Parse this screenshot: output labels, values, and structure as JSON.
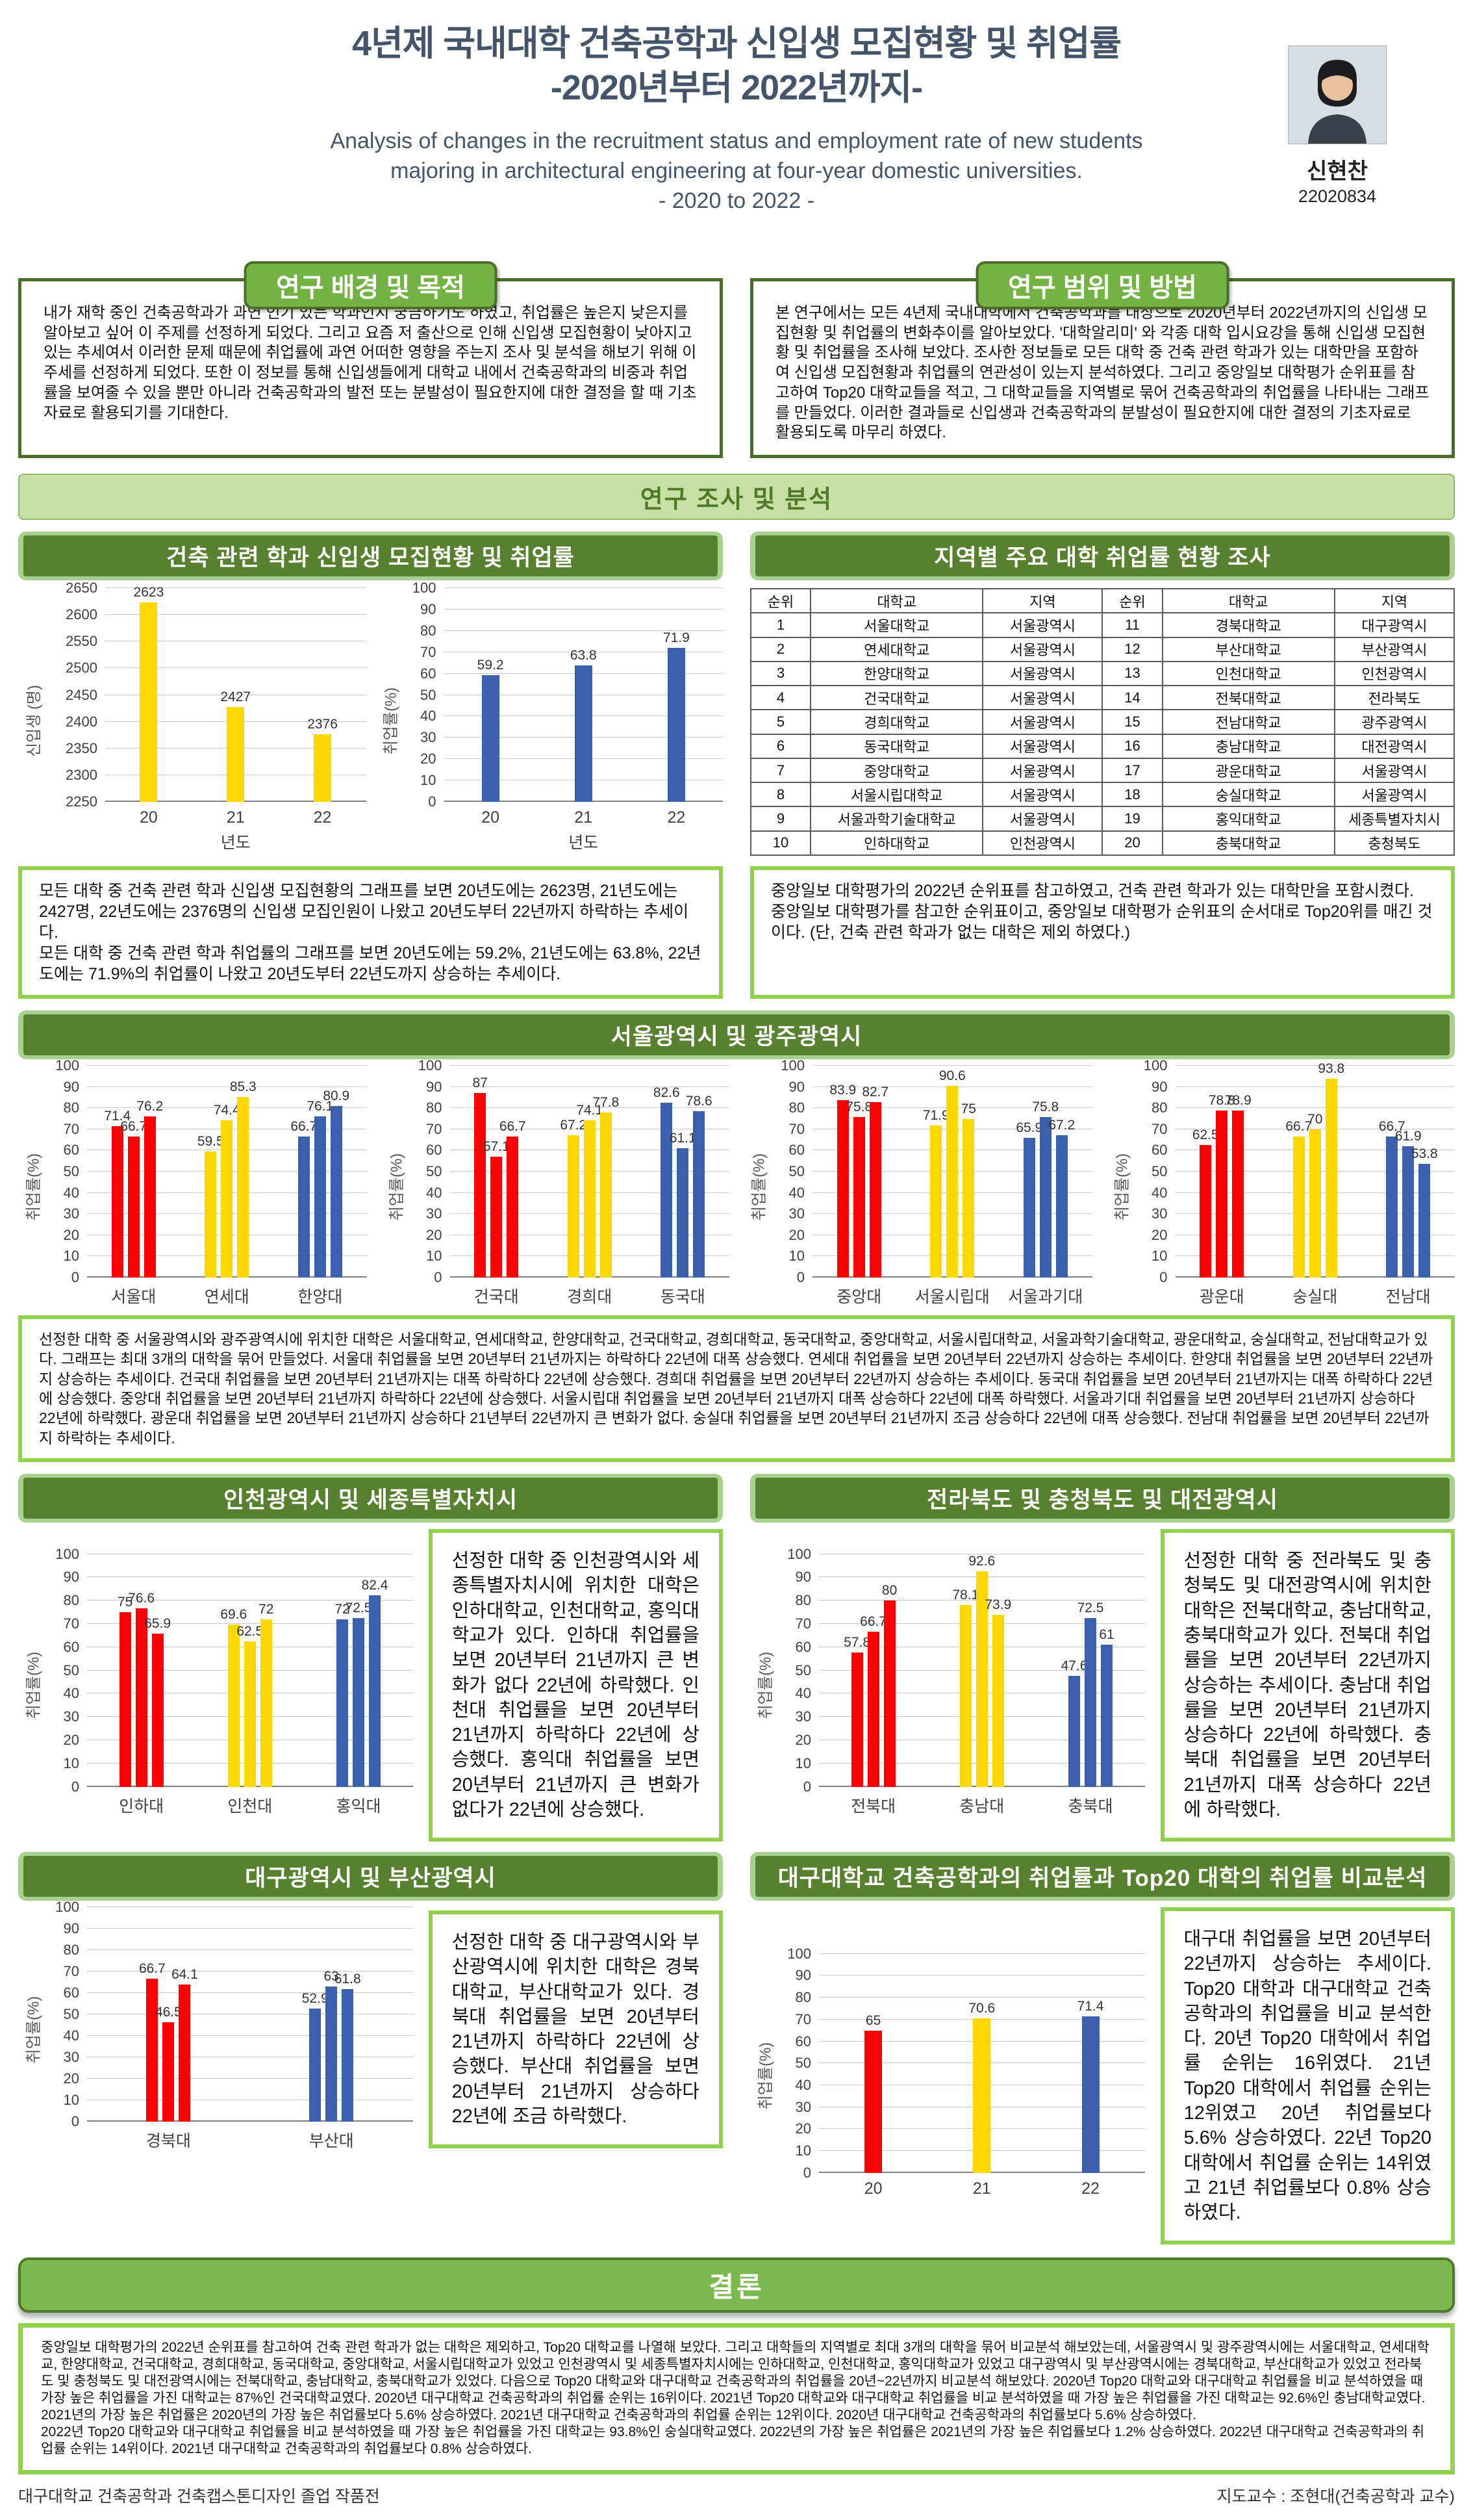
{
  "palette": {
    "red": "#ff0000",
    "yellow": "#ffd800",
    "blue": "#3a5fac",
    "section_green": "#57802f",
    "accent_light_green": "#a9d18e",
    "note_border_green": "#92d050",
    "pill_green": "#73b343",
    "title_color": "#44546a"
  },
  "header": {
    "title_line1": "4년제 국내대학 건축공학과 신입생 모집현황 및 취업률",
    "title_line2": "-2020년부터 2022년까지-",
    "subtitle_line1": "Analysis of changes in the recruitment status and employment rate of new students",
    "subtitle_line2": "majoring in architectural engineering at four-year domestic universities.",
    "subtitle_line3": "- 2020 to 2022 -",
    "author_name": "신현찬",
    "author_id": "22020834"
  },
  "background_section": {
    "title": "연구 배경 및 목적",
    "body": "내가 재학 중인 건축공학과가 과연 인기 있는 학과인지 궁금하기도 하였고, 취업률은 높은지 낮은지를 알아보고 싶어 이 주제를 선정하게 되었다. 그리고 요즘 저 출산으로 인해 신입생 모집현황이 낮아지고 있는 추세여서 이러한 문제 때문에 취업률에 과연 어떠한 영향을 주는지 조사 및 분석을 해보기 위해 이 주세를 선정하게 되었다. 또한 이 정보를 통해 신입생들에게 대학교 내에서 건축공학과의 비중과 취업률을 보여줄 수 있을 뿐만 아니라 건축공학과의 발전 또는 분발성이 필요한지에 대한 결정을 할 때 기초자료로 활용되기를 기대한다."
  },
  "method_section": {
    "title": "연구 범위 및 방법",
    "body": "본 연구에서는 모든 4년제 국내대학에서 건축공학과를 대상으로 2020년부터 2022년까지의 신입생 모집현황 및 취업률의 변화추이를 알아보았다. '대학알리미' 와 각종 대학 입시요강을 통해 신입생 모집현황 및 취업률을 조사해 보았다. 조사한 정보들로 모든 대학 중 건축 관련 학과가 있는 대학만을 포함하여 신입생 모집현황과 취업률의 연관성이 있는지 분석하였다. 그리고 중앙일보 대학평가 순위표를 참고하여 Top20 대학교들을 적고, 그 대학교들을 지역별로 묶어 건축공학과의 취업률을 나타내는 그래프를 만들었다. 이러한 결과들로 신입생과 건축공학과의 분발성이 필요한지에 대한 결정의 기초자료로 활용되도록 마무리 하였다."
  },
  "analysis_banner": "연구 조사 및 분석",
  "sections": {
    "intake": {
      "title": "건축 관련 학과 신입생 모집현황 및 취업률",
      "note": "모든 대학 중 건축 관련 학과 신입생 모집현황의 그래프를 보면 20년도에는 2623명, 21년도에는 2427명, 22년도에는 2376명의 신입생 모집인원이 나왔고 20년도부터 22년까지 하락하는 추세이다.\n모든 대학 중 건축 관련 학과 취업률의 그래프를 보면 20년도에는 59.2%, 21년도에는 63.8%, 22년도에는 71.9%의 취업률이 나왔고 20년도부터 22년도까지 상승하는 추세이다."
    },
    "regional_table": {
      "title": "지역별 주요 대학 취업률 현황 조사",
      "note": "중앙일보 대학평가의 2022년 순위표를 참고하였고, 건축 관련 학과가 있는 대학만을 포함시켰다.\n중앙일보 대학평가를 참고한 순위표이고, 중앙일보 대학평가 순위표의 순서대로 Top20위를 매긴 것이다. (단, 건축 관련 학과가 없는 대학은 제외 하였다.)"
    },
    "seoul": {
      "title": "서울광역시 및 광주광역시",
      "note": "선정한 대학 중 서울광역시와 광주광역시에 위치한 대학은 서울대학교, 연세대학교, 한양대학교, 건국대학교, 경희대학교, 동국대학교, 중앙대학교, 서울시립대학교, 서울과학기술대학교, 광운대학교, 숭실대학교, 전남대학교가 있다. 그래프는 최대 3개의 대학을 묶어 만들었다. 서울대 취업률을 보면 20년부터 21년까지는 하락하다 22년에 대폭 상승했다. 연세대 취업률을 보면 20년부터 22년까지 상승하는 추세이다. 한양대 취업률을 보면 20년부터 22년까지 상승하는 추세이다. 건국대 취업률을 보면 20년부터 21년까지는 대폭 하락하다 22년에 상승했다. 경희대 취업률을 보면 20년부터 22년까지 상승하는 추세이다. 동국대 취업률을 보면 20년부터 21년까지는 대폭 하락하다 22년에 상승했다. 중앙대 취업률을 보면 20년부터 21년까지 하락하다 22년에 상승했다. 서울시립대 취업률을 보면 20년부터 21년까지 대폭 상승하다 22년에 대폭 하락했다. 서울과기대 취업률을 보면 20년부터 21년까지 상승하다 22년에 하락했다. 광운대 취업률을 보면 20년부터 21년까지 상승하다 21년부터 22년까지 큰 변화가 없다. 숭실대 취업률을 보면 20년부터 21년까지 조금 상승하다 22년에 대폭 상승했다. 전남대 취업률을 보면 20년부터 22년까지 하락하는 추세이다."
    },
    "incheon": {
      "title": "인천광역시 및 세종특별자치시",
      "note": "선정한 대학 중 인천광역시와 세종특별자치시에 위치한 대학은 인하대학교, 인천대학교, 홍익대학교가 있다. 인하대 취업률을 보면 20년부터 21년까지 큰 변화가 없다 22년에 하락했다. 인천대 취업률을 보면 20년부터 21년까지 하락하다 22년에 상승했다. 홍익대 취업률을 보면 20년부터 21년까지 큰 변화가 없다가 22년에 상승했다."
    },
    "jeonbuk": {
      "title": "전라북도 및 충청북도 및 대전광역시",
      "note": "선정한 대학 중 전라북도 및 충청북도 및 대전광역시에 위치한 대학은 전북대학교, 충남대학교, 충북대학교가 있다. 전북대 취업률을 보면 20년부터 22년까지 상승하는 추세이다. 충남대 취업률을 보면 20년부터 21년까지 상승하다 22년에 하락했다. 충북대 취업률을 보면 20년부터 21년까지 대폭 상승하다 22년에 하락했다."
    },
    "daegu_busan": {
      "title": "대구광역시 및 부산광역시",
      "note": "선정한 대학 중 대구광역시와 부산광역시에 위치한 대학은 경북대학교, 부산대학교가 있다. 경북대 취업률을 보면 20년부터 21년까지 하락하다 22년에 상승했다. 부산대 취업률을 보면 20년부터 21년까지 상승하다 22년에 조금 하락했다."
    },
    "daegu_top20": {
      "title": "대구대학교 건축공학과의 취업률과 Top20 대학의 취업률 비교분석",
      "note": "대구대 취업률을 보면 20년부터 22년까지 상승하는 추세이다. Top20 대학과 대구대학교 건축공학과의 취업률을 비교 분석한다. 20년 Top20 대학에서 취업률 순위는 16위였다. 21년 Top20 대학에서 취업률 순위는 12위였고 20년 취업률보다 5.6% 상승하였다. 22년 Top20 대학에서 취업률 순위는 14위였고 21년 취업률보다 0.8% 상승하였다."
    }
  },
  "table": {
    "columns": [
      "순위",
      "대학교",
      "지역",
      "순위",
      "대학교",
      "지역"
    ],
    "rows": [
      [
        "1",
        "서울대학교",
        "서울광역시",
        "11",
        "경북대학교",
        "대구광역시"
      ],
      [
        "2",
        "연세대학교",
        "서울광역시",
        "12",
        "부산대학교",
        "부산광역시"
      ],
      [
        "3",
        "한양대학교",
        "서울광역시",
        "13",
        "인천대학교",
        "인천광역시"
      ],
      [
        "4",
        "건국대학교",
        "서울광역시",
        "14",
        "전북대학교",
        "전라북도"
      ],
      [
        "5",
        "경희대학교",
        "서울광역시",
        "15",
        "전남대학교",
        "광주광역시"
      ],
      [
        "6",
        "동국대학교",
        "서울광역시",
        "16",
        "충남대학교",
        "대전광역시"
      ],
      [
        "7",
        "중앙대학교",
        "서울광역시",
        "17",
        "광운대학교",
        "서울광역시"
      ],
      [
        "8",
        "서울시립대학교",
        "서울광역시",
        "18",
        "숭실대학교",
        "서울광역시"
      ],
      [
        "9",
        "서울과학기술대학교",
        "서울광역시",
        "19",
        "홍익대학교",
        "세종특별자치시"
      ],
      [
        "10",
        "인하대학교",
        "인천광역시",
        "20",
        "충북대학교",
        "충청북도"
      ]
    ]
  },
  "chart_data": [
    {
      "id": "freshmen",
      "type": "bar",
      "ylabel": "신입생 (명)",
      "xlabel": "년도",
      "ymin": 2250,
      "ymax": 2650,
      "ystep": 50,
      "grid": true,
      "legend": "none",
      "groups": [
        {
          "label": "20",
          "c": "yellow",
          "values": [
            2623
          ]
        },
        {
          "label": "21",
          "c": "yellow",
          "values": [
            2427
          ]
        },
        {
          "label": "22",
          "c": "yellow",
          "values": [
            2376
          ]
        }
      ]
    },
    {
      "id": "employment_all",
      "type": "bar",
      "ylabel": "취업률(%)",
      "xlabel": "년도",
      "ymin": 0,
      "ymax": 100,
      "ystep": 10,
      "grid": true,
      "legend": "none",
      "groups": [
        {
          "label": "20",
          "c": "blue",
          "values": [
            59.2
          ]
        },
        {
          "label": "21",
          "c": "blue",
          "values": [
            63.8
          ]
        },
        {
          "label": "22",
          "c": "blue",
          "values": [
            71.9
          ]
        }
      ]
    },
    {
      "id": "seoul1",
      "type": "grouped-bar",
      "ylabel": "취업률(%)",
      "ymin": 0,
      "ymax": 100,
      "ystep": 10,
      "grid": true,
      "legend": "none",
      "groups": [
        {
          "label": "서울대",
          "c": "red",
          "values": [
            71.4,
            66.7,
            76.2
          ]
        },
        {
          "label": "연세대",
          "c": "yellow",
          "values": [
            59.5,
            74.4,
            85.3
          ]
        },
        {
          "label": "한양대",
          "c": "blue",
          "values": [
            66.7,
            76.1,
            80.9
          ]
        }
      ]
    },
    {
      "id": "seoul2",
      "type": "grouped-bar",
      "ylabel": "취업률(%)",
      "ymin": 0,
      "ymax": 100,
      "ystep": 10,
      "grid": true,
      "legend": "none",
      "groups": [
        {
          "label": "건국대",
          "c": "red",
          "values": [
            87,
            57.1,
            66.7
          ]
        },
        {
          "label": "경희대",
          "c": "yellow",
          "values": [
            67.2,
            74.1,
            77.8
          ]
        },
        {
          "label": "동국대",
          "c": "blue",
          "values": [
            82.6,
            61.1,
            78.6
          ]
        }
      ]
    },
    {
      "id": "seoul3",
      "type": "grouped-bar",
      "ylabel": "취업률(%)",
      "ymin": 0,
      "ymax": 100,
      "ystep": 10,
      "grid": true,
      "legend": "none",
      "groups": [
        {
          "label": "중앙대",
          "c": "red",
          "values": [
            83.9,
            75.8,
            82.7
          ]
        },
        {
          "label": "서울시립대",
          "c": "yellow",
          "values": [
            71.9,
            90.6,
            75
          ]
        },
        {
          "label": "서울과기대",
          "c": "blue",
          "values": [
            65.9,
            75.8,
            67.2
          ]
        }
      ]
    },
    {
      "id": "seoul4",
      "type": "grouped-bar",
      "ylabel": "취업률(%)",
      "ymin": 0,
      "ymax": 100,
      "ystep": 10,
      "grid": true,
      "legend": "none",
      "groups": [
        {
          "label": "광운대",
          "c": "red",
          "values": [
            62.5,
            78.8,
            78.9
          ]
        },
        {
          "label": "숭실대",
          "c": "yellow",
          "values": [
            66.7,
            70,
            93.8
          ]
        },
        {
          "label": "전남대",
          "c": "blue",
          "values": [
            66.7,
            61.9,
            53.8
          ]
        }
      ]
    },
    {
      "id": "incheon",
      "type": "grouped-bar",
      "ylabel": "취업률(%)",
      "ymin": 0,
      "ymax": 100,
      "ystep": 10,
      "grid": true,
      "legend": "none",
      "groups": [
        {
          "label": "인하대",
          "c": "red",
          "values": [
            75,
            76.6,
            65.9
          ]
        },
        {
          "label": "인천대",
          "c": "yellow",
          "values": [
            69.6,
            62.5,
            72
          ]
        },
        {
          "label": "홍익대",
          "c": "blue",
          "values": [
            72,
            72.5,
            82.4
          ]
        }
      ]
    },
    {
      "id": "jeonbuk",
      "type": "grouped-bar",
      "ylabel": "취업률(%)",
      "ymin": 0,
      "ymax": 100,
      "ystep": 10,
      "grid": true,
      "legend": "none",
      "groups": [
        {
          "label": "전북대",
          "c": "red",
          "values": [
            57.8,
            66.7,
            80
          ]
        },
        {
          "label": "충남대",
          "c": "yellow",
          "values": [
            78.1,
            92.6,
            73.9
          ]
        },
        {
          "label": "충북대",
          "c": "blue",
          "values": [
            47.6,
            72.5,
            61
          ]
        }
      ]
    },
    {
      "id": "daegu_busan",
      "type": "grouped-bar",
      "ylabel": "취업률(%)",
      "ymin": 0,
      "ymax": 100,
      "ystep": 10,
      "grid": true,
      "legend": "none",
      "groups": [
        {
          "label": "경북대",
          "c": "red",
          "values": [
            66.7,
            46.5,
            64.1
          ]
        },
        {
          "label": "부산대",
          "c": "blue",
          "values": [
            52.9,
            63,
            61.8
          ]
        }
      ]
    },
    {
      "id": "daegu_top20",
      "type": "bar",
      "ylabel": "취업률(%)",
      "ymin": 0,
      "ymax": 100,
      "ystep": 10,
      "grid": true,
      "legend": "none",
      "groups": [
        {
          "label": "20",
          "c": "red",
          "values": [
            65
          ]
        },
        {
          "label": "21",
          "c": "yellow",
          "values": [
            70.6
          ]
        },
        {
          "label": "22",
          "c": "blue",
          "values": [
            71.4
          ]
        }
      ]
    }
  ],
  "conclusion": {
    "title": "결론",
    "body": "중앙일보 대학평가의 2022년 순위표를 참고하여 건축 관련 학과가 없는 대학은 제외하고, Top20 대학교를 나열해 보았다. 그리고 대학들의 지역별로 최대 3개의 대학을 묶어 비교분석 해보았는데, 서울광역시 및 광주광역시에는 서울대학교, 연세대학교, 한양대학교, 건국대학교, 경희대학교, 동국대학교, 중앙대학교, 서울시립대학교가 있었고 인천광역시 및 세종특별자치시에는 인하대학교, 인천대학교, 홍익대학교가 있었고 대구광역시 및 부산광역시에는 경북대학교, 부산대학교가 있었고 전라북도 및 충청북도 및 대전광역시에는 전북대학교, 충남대학교, 충북대학교가 있었다. 다음으로 Top20 대학교와 대구대학교 건축공학과의 취업률을 20년~22년까지 비교분석 해보았다. 2020년 Top20 대학교와 대구대학교 취업률을 비교 분석하였을 때 가장 높은 취업률을 가진 대학교는 87%인 건국대학교였다. 2020년 대구대학교 건축공학과의 취업률 순위는 16위이다. 2021년 Top20 대학교와 대구대학교 취업률을 비교 분석하였을 때 가장 높은 취업률을 가진 대학교는 92.6%인 충남대학교였다. 2021년의 가장 높은 취업률은 2020년의 가장 높은 취업률보다 5.6% 상승하였다. 2021년 대구대학교 건축공학과의 취업률 순위는 12위이다. 2020년 대구대학교 건축공학과의 취업률보다 5.6% 상승하였다.\n2022년 Top20 대학교와 대구대학교 취업률을 비교 분석하였을 때 가장 높은 취업률을 가진 대학교는 93.8%인 숭실대학교였다. 2022년의 가장 높은 취업률은 2021년의 가장 높은 취업률보다 1.2% 상승하였다. 2022년 대구대학교 건축공학과의 취업률 순위는 14위이다. 2021년 대구대학교 건축공학과의 취업률보다 0.8% 상승하였다."
  },
  "footer": {
    "left": "대구대학교 건축공학과 건축캡스톤디자인 졸업 작품전",
    "right": "지도교수 : 조현대(건축공학과 교수)"
  }
}
